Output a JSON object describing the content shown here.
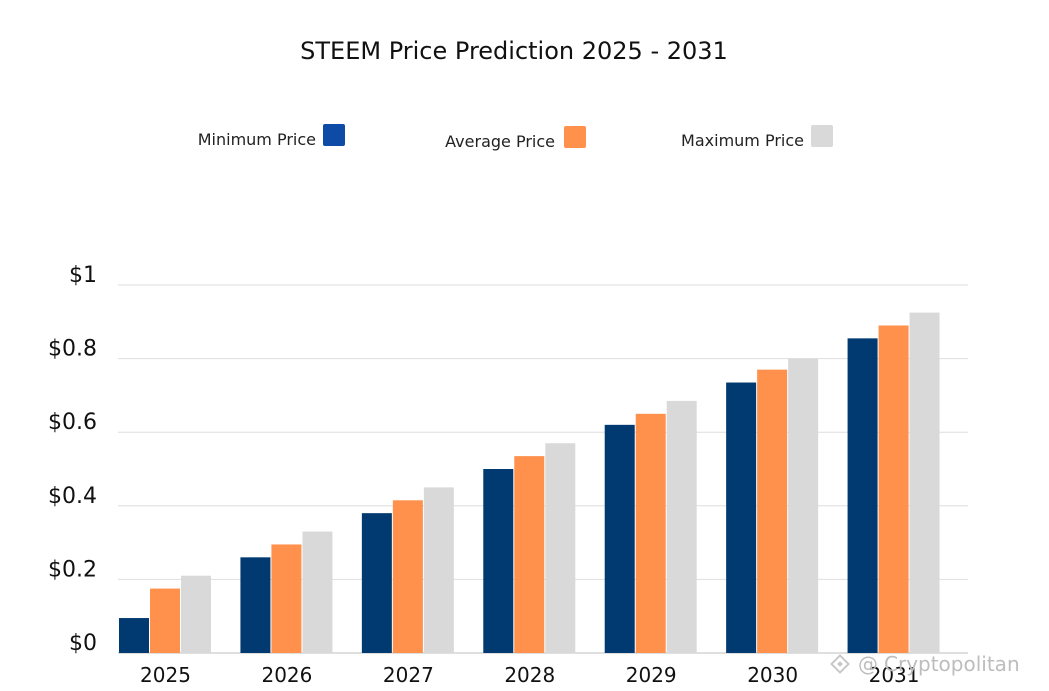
{
  "chart_data": {
    "type": "bar",
    "title": "STEEM Price Prediction 2025 - 2031",
    "xlabel": "",
    "ylabel": "",
    "categories": [
      "2025",
      "2026",
      "2027",
      "2028",
      "2029",
      "2030",
      "2031"
    ],
    "series": [
      {
        "name": "Minimum Price",
        "color": "#003a70",
        "values": [
          0.095,
          0.26,
          0.38,
          0.5,
          0.62,
          0.735,
          0.855
        ]
      },
      {
        "name": "Average Price",
        "color": "#ff914d",
        "values": [
          0.175,
          0.295,
          0.415,
          0.535,
          0.65,
          0.77,
          0.89
        ]
      },
      {
        "name": "Maximum Price",
        "color": "#d9d9d9",
        "values": [
          0.21,
          0.33,
          0.45,
          0.57,
          0.685,
          0.8,
          0.925
        ]
      }
    ],
    "legend_swatch_colors": [
      "#0d4ba6",
      "#ff914d",
      "#d9d9d9"
    ],
    "ylim": [
      0,
      1
    ],
    "y_ticks": [
      0,
      0.2,
      0.4,
      0.6,
      0.8,
      1
    ],
    "y_tick_labels": [
      "$0",
      "$0.2",
      "$0.4",
      "$0.6",
      "$0.8",
      "$1"
    ],
    "grid": true,
    "legend_position": "top"
  },
  "watermark": {
    "text": "Cryptopolitan",
    "icon": "binance-square-icon"
  }
}
